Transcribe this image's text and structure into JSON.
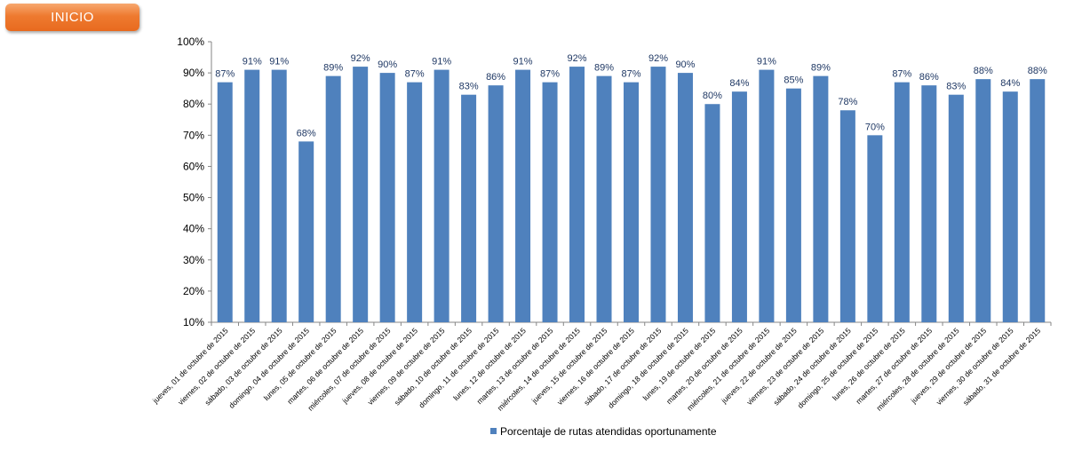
{
  "inicio_button": {
    "label": "INICIO"
  },
  "chart_data": {
    "type": "bar",
    "categories": [
      "jueves, 01 de octubre de 2015",
      "viernes, 02 de octubre de 2015",
      "sábado, 03 de octubre de 2015",
      "domingo, 04 de octubre de 2015",
      "lunes, 05 de octubre de 2015",
      "martes, 06 de octubre de 2015",
      "miércoles, 07 de octubre de 2015",
      "jueves, 08 de octubre de 2015",
      "viernes, 09 de octubre de 2015",
      "sábado, 10 de octubre de 2015",
      "domingo, 11 de octubre de 2015",
      "lunes, 12 de octubre de 2015",
      "martes, 13 de octubre de 2015",
      "miércoles, 14 de octubre de 2015",
      "jueves, 15 de octubre de 2015",
      "viernes, 16 de octubre de 2015",
      "sábado, 17 de octubre de 2015",
      "domingo, 18 de octubre de 2015",
      "lunes, 19 de octubre de 2015",
      "martes, 20 de octubre de 2015",
      "miércoles, 21 de octubre de 2015",
      "jueves, 22 de octubre de 2015",
      "viernes, 23 de octubre de 2015",
      "sábado, 24 de octubre de 2015",
      "domingo, 25 de octubre de 2015",
      "lunes, 26 de octubre de 2015",
      "martes, 27 de octubre de 2015",
      "miércoles, 28 de octubre de 2015",
      "jueves, 29 de octubre de 2015",
      "viernes, 30 de octubre de 2015",
      "sábado, 31 de octubre de 2015"
    ],
    "series": [
      {
        "name": "Porcentaje de rutas atendidas oportunamente",
        "values": [
          87,
          91,
          91,
          68,
          89,
          92,
          90,
          87,
          91,
          83,
          86,
          91,
          87,
          92,
          89,
          87,
          92,
          90,
          80,
          84,
          91,
          85,
          89,
          78,
          70,
          87,
          86,
          83,
          88,
          84,
          88
        ],
        "labels": [
          "87%",
          "91%",
          "91%",
          "68%",
          "89%",
          "92%",
          "90%",
          "87%",
          "91%",
          "83%",
          "86%",
          "91%",
          "87%",
          "92%",
          "89%",
          "87%",
          "92%",
          "90%",
          "80%",
          "84%",
          "91%",
          "85%",
          "89%",
          "78%",
          "70%",
          "87%",
          "86%",
          "83%",
          "88%",
          "84%",
          "88%"
        ]
      }
    ],
    "ylim": [
      10,
      100
    ],
    "yticks": [
      "10%",
      "20%",
      "30%",
      "40%",
      "50%",
      "60%",
      "70%",
      "80%",
      "90%",
      "100%"
    ],
    "bar_color": "#4f81bd",
    "label_color": "#1f3864",
    "legend": {
      "position": "bottom"
    },
    "grid": false
  }
}
